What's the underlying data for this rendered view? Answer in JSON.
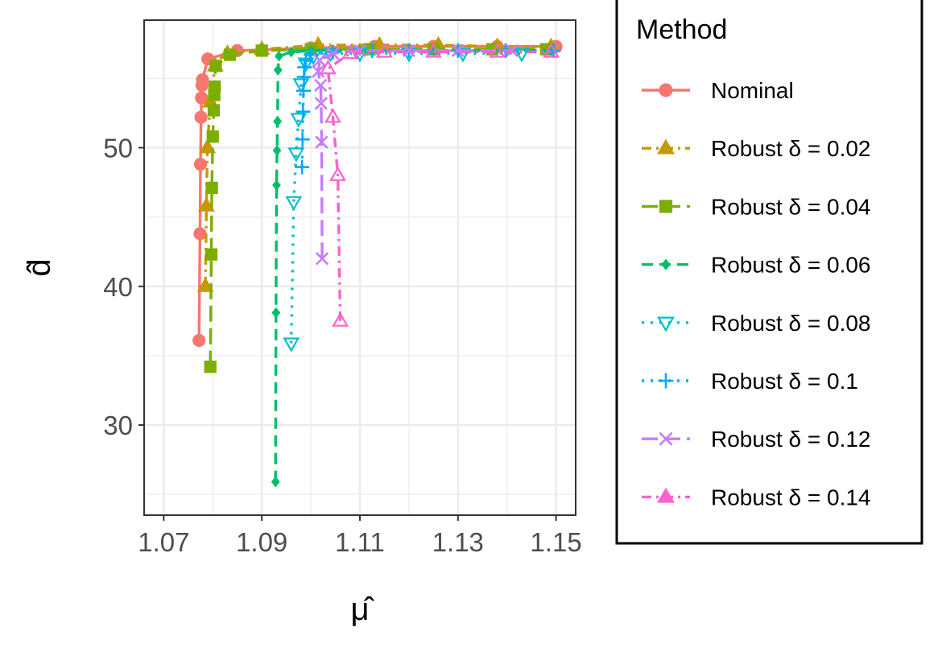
{
  "chart_data": {
    "type": "line",
    "xlabel": "μ̂",
    "ylabel": "d̂",
    "xlim": [
      1.066,
      1.154
    ],
    "ylim": [
      23.5,
      59.2
    ],
    "x_ticks": [
      1.07,
      1.09,
      1.11,
      1.13,
      1.15
    ],
    "x_tick_labels": [
      "1.07",
      "1.09",
      "1.11",
      "1.13",
      "1.15"
    ],
    "y_ticks": [
      30,
      40,
      50
    ],
    "y_tick_labels": [
      "30",
      "40",
      "50"
    ],
    "grid": true,
    "legend": {
      "title": "Method",
      "position": "right"
    },
    "series": [
      {
        "name": "Nominal",
        "color": "#F8766D",
        "marker": "circle",
        "dash": "solid",
        "points": [
          [
            1.0772,
            36.1
          ],
          [
            1.0774,
            43.8
          ],
          [
            1.0775,
            48.8
          ],
          [
            1.0776,
            52.2
          ],
          [
            1.0777,
            53.6
          ],
          [
            1.0778,
            54.5
          ],
          [
            1.0779,
            54.9
          ],
          [
            1.079,
            56.4
          ],
          [
            1.085,
            57.0
          ],
          [
            1.1,
            57.2
          ],
          [
            1.113,
            57.3
          ],
          [
            1.125,
            57.3
          ],
          [
            1.138,
            57.3
          ],
          [
            1.15,
            57.3
          ]
        ]
      },
      {
        "name": "Robust δ = 0.02",
        "color": "#C49A00",
        "marker": "triangle",
        "dash": "dash-dot",
        "points": [
          [
            1.0785,
            40.0
          ],
          [
            1.0787,
            45.8
          ],
          [
            1.0789,
            50.0
          ],
          [
            1.0795,
            53.3
          ],
          [
            1.0805,
            55.9
          ],
          [
            1.083,
            56.8
          ],
          [
            1.09,
            57.1
          ],
          [
            1.1015,
            57.4
          ],
          [
            1.114,
            57.4
          ],
          [
            1.126,
            57.4
          ],
          [
            1.138,
            57.3
          ],
          [
            1.149,
            57.3
          ]
        ]
      },
      {
        "name": "Robust δ = 0.04",
        "color": "#7CAE00",
        "marker": "square",
        "dash": "longdash",
        "points": [
          [
            1.0795,
            34.2
          ],
          [
            1.0797,
            42.3
          ],
          [
            1.0798,
            47.1
          ],
          [
            1.08,
            50.8
          ],
          [
            1.0802,
            52.7
          ],
          [
            1.0803,
            53.8
          ],
          [
            1.0804,
            54.4
          ],
          [
            1.0806,
            55.9
          ],
          [
            1.0835,
            56.7
          ],
          [
            1.09,
            57.0
          ],
          [
            1.1,
            57.1
          ],
          [
            1.112,
            57.1
          ],
          [
            1.125,
            57.1
          ],
          [
            1.137,
            57.1
          ],
          [
            1.148,
            57.1
          ]
        ]
      },
      {
        "name": "Robust δ = 0.06",
        "color": "#00BE67",
        "marker": "diamond",
        "dash": "dash",
        "points": [
          [
            1.0928,
            25.9
          ],
          [
            1.0929,
            38.1
          ],
          [
            1.093,
            47.3
          ],
          [
            1.0931,
            49.8
          ],
          [
            1.0932,
            51.9
          ],
          [
            1.0933,
            55.6
          ],
          [
            1.0935,
            56.6
          ],
          [
            1.096,
            56.9
          ],
          [
            1.1,
            57.0
          ],
          [
            1.11,
            57.0
          ],
          [
            1.125,
            57.0
          ],
          [
            1.14,
            57.0
          ],
          [
            1.149,
            57.0
          ]
        ]
      },
      {
        "name": "Robust δ = 0.08",
        "color": "#00BFC4",
        "marker": "triangle-down",
        "dash": "dotted",
        "points": [
          [
            1.096,
            35.9
          ],
          [
            1.0965,
            46.1
          ],
          [
            1.097,
            49.6
          ],
          [
            1.0975,
            52.1
          ],
          [
            1.098,
            54.6
          ],
          [
            1.099,
            56.1
          ],
          [
            1.1005,
            56.6
          ],
          [
            1.104,
            56.8
          ],
          [
            1.11,
            56.8
          ],
          [
            1.12,
            56.8
          ],
          [
            1.131,
            56.8
          ],
          [
            1.143,
            56.8
          ]
        ]
      },
      {
        "name": "Robust δ = 0.1",
        "color": "#00A9FF",
        "marker": "plus",
        "dash": "dotted",
        "points": [
          [
            1.0982,
            48.6
          ],
          [
            1.0983,
            50.6
          ],
          [
            1.0984,
            52.6
          ],
          [
            1.0985,
            54.1
          ],
          [
            1.0986,
            55.1
          ],
          [
            1.0987,
            55.8
          ],
          [
            1.099,
            56.3
          ],
          [
            1.1,
            56.7
          ],
          [
            1.1045,
            56.9
          ],
          [
            1.1125,
            57.0
          ],
          [
            1.12,
            57.0
          ],
          [
            1.13,
            57.0
          ],
          [
            1.1397,
            57.0
          ],
          [
            1.1495,
            57.0
          ]
        ]
      },
      {
        "name": "Robust δ = 0.12",
        "color": "#C77CFF",
        "marker": "cross",
        "dash": "longdash",
        "points": [
          [
            1.1023,
            42.0
          ],
          [
            1.1022,
            50.4
          ],
          [
            1.1021,
            53.2
          ],
          [
            1.102,
            54.5
          ],
          [
            1.1015,
            55.5
          ],
          [
            1.1018,
            56.3
          ],
          [
            1.1045,
            56.8
          ],
          [
            1.11,
            57.0
          ],
          [
            1.12,
            57.0
          ],
          [
            1.13,
            57.0
          ],
          [
            1.141,
            57.0
          ]
        ]
      },
      {
        "name": "Robust δ = 0.14",
        "color": "#FF61CC",
        "marker": "triangle",
        "dash": "dash-dot",
        "points": [
          [
            1.106,
            37.5
          ],
          [
            1.1055,
            48.0
          ],
          [
            1.1045,
            52.2
          ],
          [
            1.1035,
            55.7
          ],
          [
            1.108,
            56.8
          ],
          [
            1.115,
            56.9
          ],
          [
            1.125,
            56.9
          ],
          [
            1.138,
            56.9
          ],
          [
            1.149,
            56.9
          ]
        ]
      }
    ]
  }
}
